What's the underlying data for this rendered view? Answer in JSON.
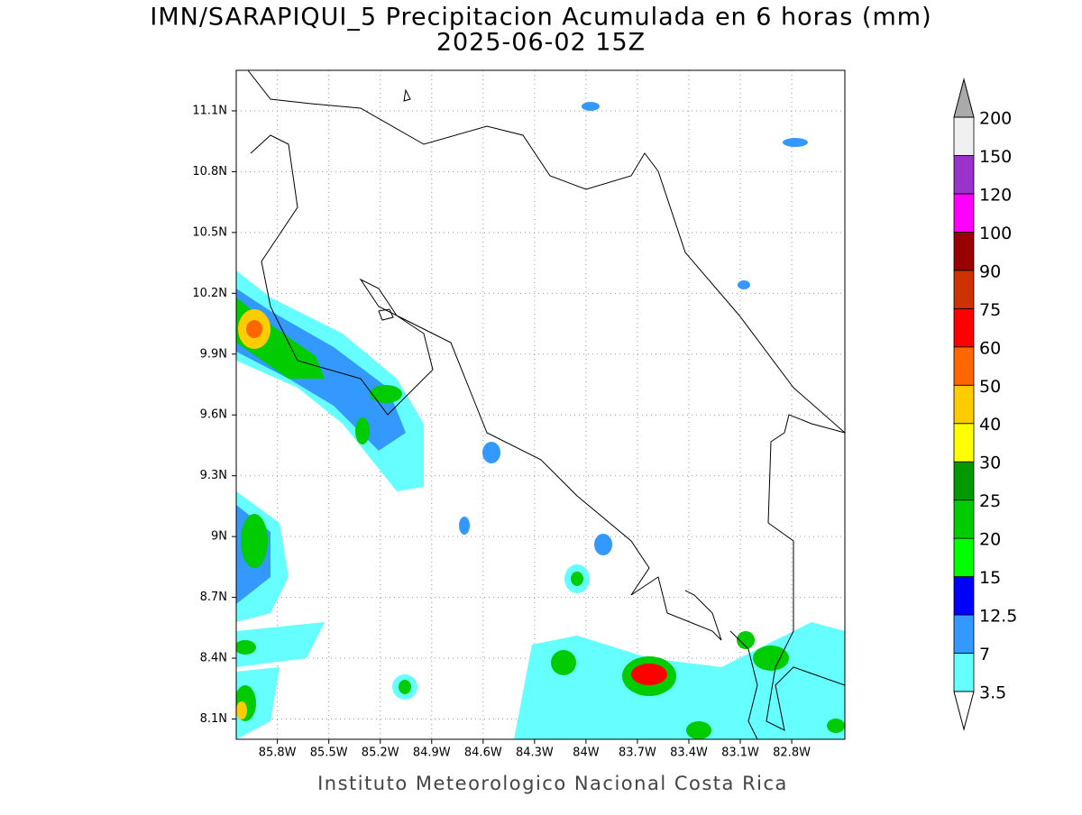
{
  "map": {
    "title": "IMN/SARAPIQUI_5 Precipitacion Acumulada en 6 horas (mm)",
    "subtitle": "2025-06-02 15Z",
    "footer": "Instituto Meteorologico Nacional Costa Rica",
    "xlim": [
      -86.04,
      -82.49
    ],
    "ylim": [
      8.0,
      11.3
    ],
    "grid": true,
    "lon_ticks": [
      {
        "value": -85.8,
        "label": "85.8W"
      },
      {
        "value": -85.5,
        "label": "85.5W"
      },
      {
        "value": -85.2,
        "label": "85.2W"
      },
      {
        "value": -84.9,
        "label": "84.9W"
      },
      {
        "value": -84.6,
        "label": "84.6W"
      },
      {
        "value": -84.3,
        "label": "84.3W"
      },
      {
        "value": -84.0,
        "label": "84W"
      },
      {
        "value": -83.7,
        "label": "83.7W"
      },
      {
        "value": -83.4,
        "label": "83.4W"
      },
      {
        "value": -83.1,
        "label": "83.1W"
      },
      {
        "value": -82.8,
        "label": "82.8W"
      }
    ],
    "lat_ticks": [
      {
        "value": 8.1,
        "label": "8.1N"
      },
      {
        "value": 8.4,
        "label": "8.4N"
      },
      {
        "value": 8.7,
        "label": "8.7N"
      },
      {
        "value": 9.0,
        "label": "9N"
      },
      {
        "value": 9.3,
        "label": "9.3N"
      },
      {
        "value": 9.6,
        "label": "9.6N"
      },
      {
        "value": 9.9,
        "label": "9.9N"
      },
      {
        "value": 10.2,
        "label": "10.2N"
      },
      {
        "value": 10.5,
        "label": "10.5N"
      },
      {
        "value": 10.8,
        "label": "10.8N"
      },
      {
        "value": 11.1,
        "label": "11.1N"
      }
    ],
    "colorbar": {
      "levels": [
        3.5,
        7,
        12.5,
        15,
        20,
        25,
        30,
        40,
        50,
        60,
        75,
        90,
        100,
        120,
        150,
        200
      ],
      "colors": [
        "#66ffff",
        "#3399ff",
        "#0000ff",
        "#00ff00",
        "#00cc00",
        "#009900",
        "#ffff00",
        "#ffcc00",
        "#ff6600",
        "#ff0000",
        "#cc3300",
        "#990000",
        "#ff00ff",
        "#9933cc",
        "#f0f0f0"
      ],
      "under_color": "#ffffff",
      "over_color": "#aaaaaa"
    }
  }
}
